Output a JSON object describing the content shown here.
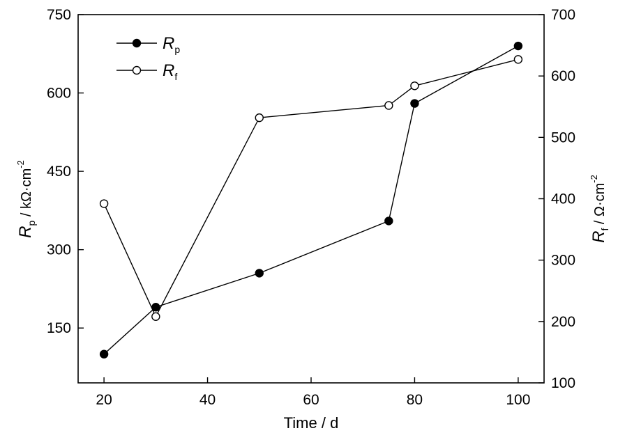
{
  "chart_data": {
    "type": "line",
    "x": [
      20,
      30,
      50,
      75,
      80,
      100
    ],
    "xlabel": "Time / d",
    "xlim": [
      15,
      105
    ],
    "x_ticks": [
      20,
      40,
      60,
      80,
      100
    ],
    "series": [
      {
        "name": "Rp",
        "axis": "left",
        "marker": "filled-circle",
        "values": [
          100,
          190,
          255,
          355,
          580,
          690
        ]
      },
      {
        "name": "Rf",
        "axis": "right",
        "marker": "open-circle",
        "values": [
          392,
          208,
          532,
          552,
          584,
          627
        ]
      }
    ],
    "y_left": {
      "label_main": "R",
      "label_sub": "p",
      "label_rest": " / kΩ·cm",
      "label_sup": "-2",
      "lim": [
        45,
        750
      ],
      "ticks": [
        150,
        300,
        450,
        600,
        750
      ]
    },
    "y_right": {
      "label_main": "R",
      "label_sub": "f",
      "label_rest": " / Ω·cm",
      "label_sup": "-2",
      "lim": [
        100,
        700
      ],
      "ticks": [
        100,
        200,
        300,
        400,
        500,
        600,
        700
      ]
    },
    "legend": {
      "placement": "top-left",
      "entries": [
        {
          "main": "R",
          "sub": "p",
          "marker": "filled-circle"
        },
        {
          "main": "R",
          "sub": "f",
          "marker": "open-circle"
        }
      ]
    },
    "grid": false
  }
}
